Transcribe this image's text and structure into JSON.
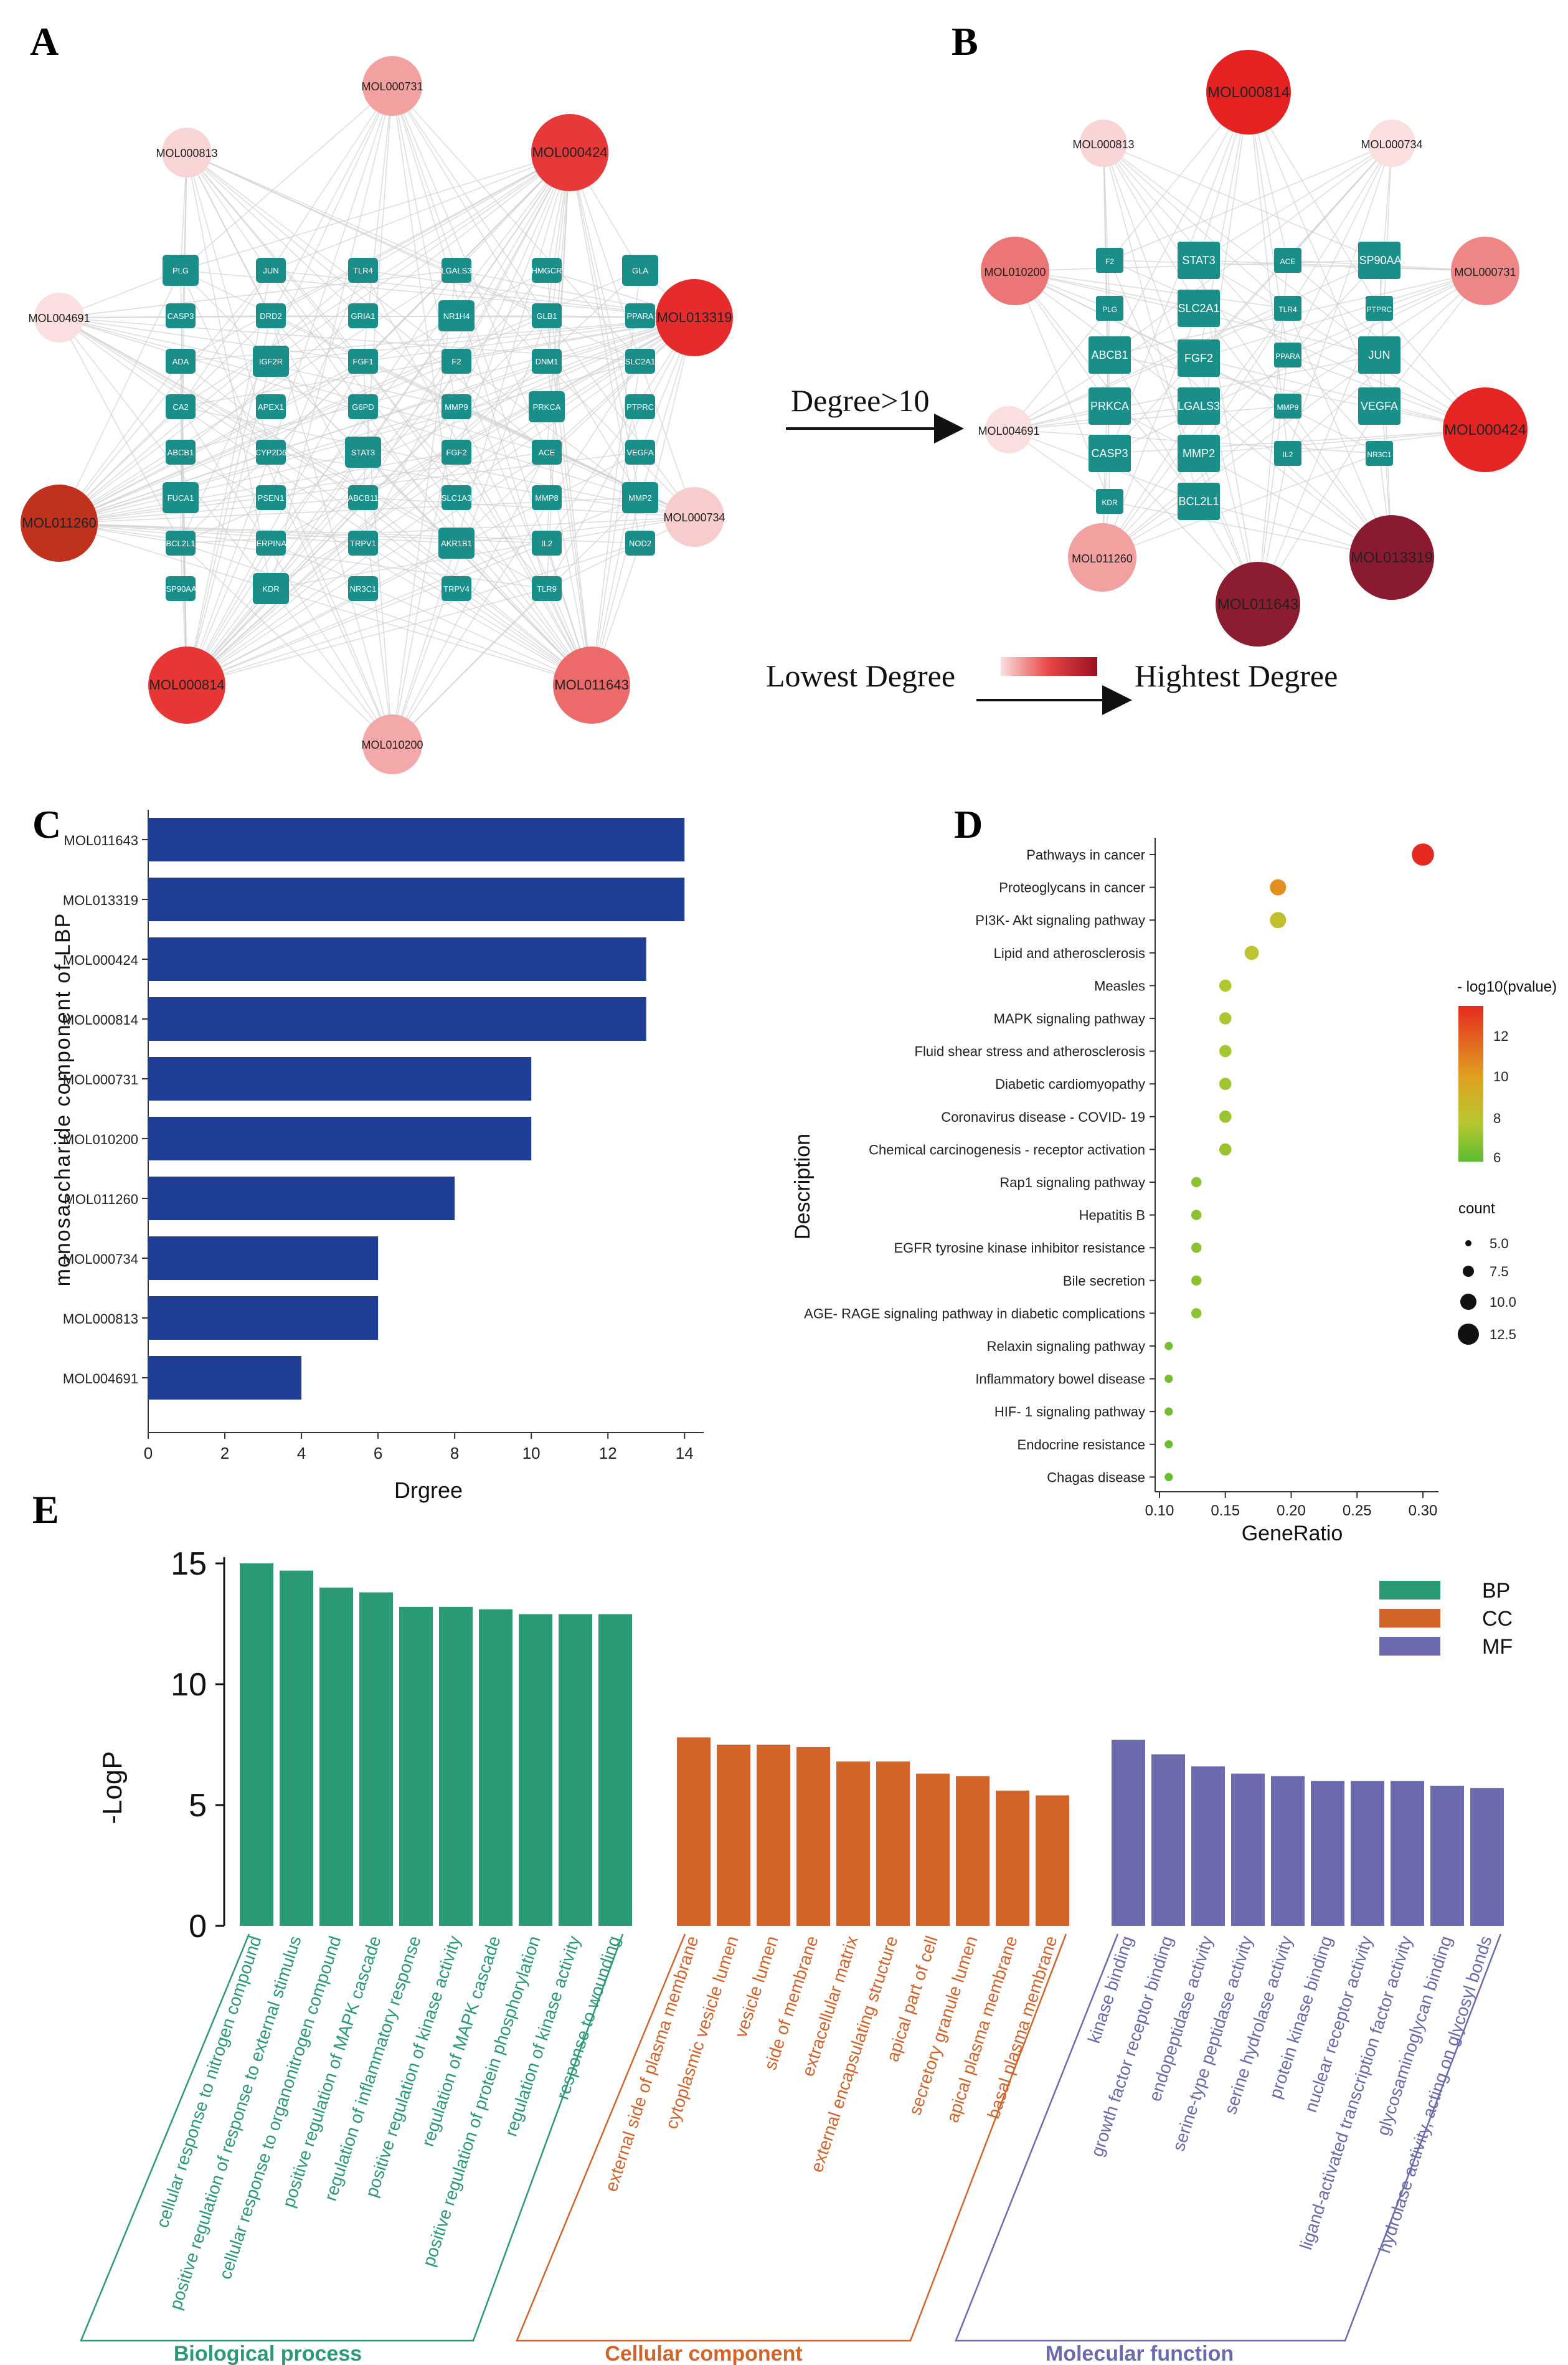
{
  "panel_labels": [
    "A",
    "B",
    "C",
    "D",
    "E"
  ],
  "colors": {
    "teal": "#1a8f8a",
    "teal_text": "#ffffff",
    "bar_blue": "#1f3f97",
    "edge": "#cfcfcf",
    "bp": "#2a9a74",
    "cc": "#d2642a",
    "mf": "#6a6aac"
  },
  "network_a": {
    "molecules": [
      {
        "id": "MOL000731",
        "color": "#f2a0a0",
        "size": 2
      },
      {
        "id": "MOL000813",
        "color": "#f9d4d4",
        "size": 1
      },
      {
        "id": "MOL000424",
        "color": "#e8393a",
        "size": 3
      },
      {
        "id": "MOL004691",
        "color": "#fbdede",
        "size": 1
      },
      {
        "id": "MOL013319",
        "color": "#e52b2b",
        "size": 3
      },
      {
        "id": "MOL011260",
        "color": "#c0321d",
        "size": 3
      },
      {
        "id": "MOL000734",
        "color": "#f8cccc",
        "size": 2
      },
      {
        "id": "MOL000814",
        "color": "#e83636",
        "size": 3
      },
      {
        "id": "MOL011643",
        "color": "#ec6a6a",
        "size": 3
      },
      {
        "id": "MOL010200",
        "color": "#f3a9a9",
        "size": 2
      }
    ],
    "targets": [
      [
        "PLG",
        "CASP3",
        "ADA",
        "CA2",
        "ABCB1",
        "FUCA1",
        "BCL2L1",
        "HSP90AA1"
      ],
      [
        "JUN",
        "DRD2",
        "IGF2R",
        "APEX1",
        "CYP2D6",
        "PSEN1",
        "SERPINA6",
        "KDR"
      ],
      [
        "TLR4",
        "GRIA1",
        "FGF1",
        "G6PD",
        "STAT3",
        "ABCB11",
        "TRPV1",
        "NR3C1"
      ],
      [
        "LGALS3",
        "NR1H4",
        "F2",
        "MMP9",
        "FGF2",
        "SLC1A3",
        "AKR1B1",
        "TRPV4"
      ],
      [
        "HMGCR",
        "GLB1",
        "DNM1",
        "PRKCA",
        "ACE",
        "MMP8",
        "IL2",
        "TLR9"
      ],
      [
        "GLA",
        "PPARA",
        "SLC2A1",
        "PTPRC",
        "VEGFA",
        "MMP2",
        "NOD2"
      ]
    ]
  },
  "arrow_label": "Degree>10",
  "network_b": {
    "molecules": [
      {
        "id": "MOL000814",
        "color": "#e52222",
        "size": 3
      },
      {
        "id": "MOL000813",
        "color": "#f9d4d4",
        "size": 1
      },
      {
        "id": "MOL000734",
        "color": "#fbdede",
        "size": 1
      },
      {
        "id": "MOL010200",
        "color": "#ec7575",
        "size": 2
      },
      {
        "id": "MOL000731",
        "color": "#ef8686",
        "size": 2
      },
      {
        "id": "MOL004691",
        "color": "#fbdede",
        "size": 1
      },
      {
        "id": "MOL000424",
        "color": "#e52424",
        "size": 3
      },
      {
        "id": "MOL011260",
        "color": "#f2a0a0",
        "size": 2
      },
      {
        "id": "MOL011643",
        "color": "#8c1c30",
        "size": 3
      },
      {
        "id": "MOL013319",
        "color": "#8a1a30",
        "size": 3
      }
    ],
    "targets": [
      [
        "F2",
        "PLG",
        "ABCB1",
        "PRKCA",
        "CASP3",
        "KDR"
      ],
      [
        "STAT3",
        "SLC2A1",
        "FGF2",
        "LGALS3",
        "MMP2",
        "BCL2L1"
      ],
      [
        "ACE",
        "TLR4",
        "PPARA",
        "MMP9",
        "IL2"
      ],
      [
        "HSP90AA1",
        "PTPRC",
        "JUN",
        "VEGFA",
        "NR3C1"
      ]
    ]
  },
  "legend_degree": {
    "low": "Lowest Degree",
    "high": "Hightest Degree"
  },
  "panel_c": {
    "ylabel": "monosaccharide component of LBP",
    "xlabel": "Drgree",
    "xticks": [
      "0",
      "2",
      "4",
      "6",
      "8",
      "10",
      "12",
      "14"
    ]
  },
  "panel_d": {
    "ylabel": "Description",
    "xlabel": "GeneRatio",
    "xticks": [
      "0.10",
      "0.15",
      "0.20",
      "0.25",
      "0.30"
    ],
    "color_legend_title": "- log10(pvalue)",
    "color_ticks": [
      "12",
      "10",
      "8",
      "6"
    ],
    "count_legend_title": "count",
    "count_ticks": [
      "5.0",
      "7.5",
      "10.0",
      "12.5"
    ]
  },
  "panel_e": {
    "ylabel": "-LogP",
    "yticks": [
      "0",
      "5",
      "10",
      "15"
    ],
    "legend": [
      "BP",
      "CC",
      "MF"
    ],
    "group_labels": [
      "Biological process",
      "Cellular component",
      "Molecular function"
    ]
  },
  "chart_data": [
    {
      "type": "bar",
      "orientation": "horizontal",
      "title": "",
      "xlabel": "Drgree",
      "ylabel": "monosaccharide component of LBP",
      "categories": [
        "MOL011643",
        "MOL013319",
        "MOL000424",
        "MOL000814",
        "MOL000731",
        "MOL010200",
        "MOL011260",
        "MOL000734",
        "MOL000813",
        "MOL004691"
      ],
      "values": [
        14,
        14,
        13,
        13,
        10,
        10,
        8,
        6,
        6,
        4
      ],
      "xlim": [
        0,
        14.5
      ]
    },
    {
      "type": "scatter",
      "title": "",
      "xlabel": "GeneRatio",
      "ylabel": "Description",
      "xlim": [
        0.1,
        0.3
      ],
      "points": [
        {
          "term": "Pathways in cancer",
          "generatio": 0.3,
          "count": 13,
          "neglog10p": 13.5
        },
        {
          "term": "Proteoglycans in cancer",
          "generatio": 0.19,
          "count": 10,
          "neglog10p": 10.5
        },
        {
          "term": "PI3K- Akt signaling pathway",
          "generatio": 0.19,
          "count": 10,
          "neglog10p": 8.5
        },
        {
          "term": "Lipid and atherosclerosis",
          "generatio": 0.17,
          "count": 9,
          "neglog10p": 8.2
        },
        {
          "term": "Measles",
          "generatio": 0.15,
          "count": 8,
          "neglog10p": 7.8
        },
        {
          "term": "MAPK signaling pathway",
          "generatio": 0.15,
          "count": 8,
          "neglog10p": 7.7
        },
        {
          "term": "Fluid shear stress and atherosclerosis",
          "generatio": 0.15,
          "count": 8,
          "neglog10p": 7.6
        },
        {
          "term": "Diabetic cardiomyopathy",
          "generatio": 0.15,
          "count": 8,
          "neglog10p": 7.5
        },
        {
          "term": "Coronavirus disease -  COVID- 19",
          "generatio": 0.15,
          "count": 8,
          "neglog10p": 7.4
        },
        {
          "term": "Chemical carcinogenesis -  receptor activation",
          "generatio": 0.15,
          "count": 8,
          "neglog10p": 7.3
        },
        {
          "term": "Rap1 signaling pathway",
          "generatio": 0.128,
          "count": 7,
          "neglog10p": 7.0
        },
        {
          "term": "Hepatitis B",
          "generatio": 0.128,
          "count": 7,
          "neglog10p": 7.0
        },
        {
          "term": "EGFR tyrosine kinase inhibitor resistance",
          "generatio": 0.128,
          "count": 7,
          "neglog10p": 7.0
        },
        {
          "term": "Bile secretion",
          "generatio": 0.128,
          "count": 7,
          "neglog10p": 7.0
        },
        {
          "term": "AGE- RAGE signaling pathway in diabetic complications",
          "generatio": 0.128,
          "count": 7,
          "neglog10p": 7.0
        },
        {
          "term": "Relaxin signaling pathway",
          "generatio": 0.107,
          "count": 6,
          "neglog10p": 6.5
        },
        {
          "term": "Inflammatory bowel disease",
          "generatio": 0.107,
          "count": 6,
          "neglog10p": 6.5
        },
        {
          "term": "HIF- 1 signaling pathway",
          "generatio": 0.107,
          "count": 6,
          "neglog10p": 6.4
        },
        {
          "term": "Endocrine resistance",
          "generatio": 0.107,
          "count": 6,
          "neglog10p": 6.3
        },
        {
          "term": "Chagas disease",
          "generatio": 0.107,
          "count": 6,
          "neglog10p": 6.2
        }
      ]
    },
    {
      "type": "bar",
      "title": "",
      "ylabel": "-LogP",
      "ylim": [
        0,
        15
      ],
      "series": [
        {
          "name": "BP",
          "categories": [
            "cellular response to nitrogen compound",
            "positive regulation of response to external stimulus",
            "cellular response to organonitrogen compound",
            "positive regulation of MAPK cascade",
            "regulation of inflammatory response",
            "positive regulation of kinase activity",
            "regulation of MAPK cascade",
            "positive regulation of protein phosphorylation",
            "regulation of kinase activity",
            "response to wounding"
          ],
          "values": [
            15.0,
            14.7,
            14.0,
            13.8,
            13.2,
            13.2,
            13.1,
            12.9,
            12.9,
            12.9
          ]
        },
        {
          "name": "CC",
          "categories": [
            "external side of plasma membrane",
            "cytoplasmic vesicle lumen",
            "vesicle lumen",
            "side of membrane",
            "extracellular matrix",
            "external encapsulating structure",
            "apical part of cell",
            "secretory granule lumen",
            "apical plasma membrane",
            "basal plasma membrane"
          ],
          "values": [
            7.8,
            7.5,
            7.5,
            7.4,
            6.8,
            6.8,
            6.3,
            6.2,
            5.6,
            5.4
          ]
        },
        {
          "name": "MF",
          "categories": [
            "kinase binding",
            "growth factor receptor binding",
            "endopeptidase activity",
            "serine-type peptidase activity",
            "serine hydrolase activity",
            "protein kinase binding",
            "nuclear receptor activity",
            "ligand-activated transcription factor activity",
            "glycosaminoglycan binding",
            "hydrolase activity, acting on glycosyl bonds"
          ],
          "values": [
            7.7,
            7.1,
            6.6,
            6.3,
            6.2,
            6.0,
            6.0,
            6.0,
            5.8,
            5.7
          ]
        }
      ]
    }
  ]
}
